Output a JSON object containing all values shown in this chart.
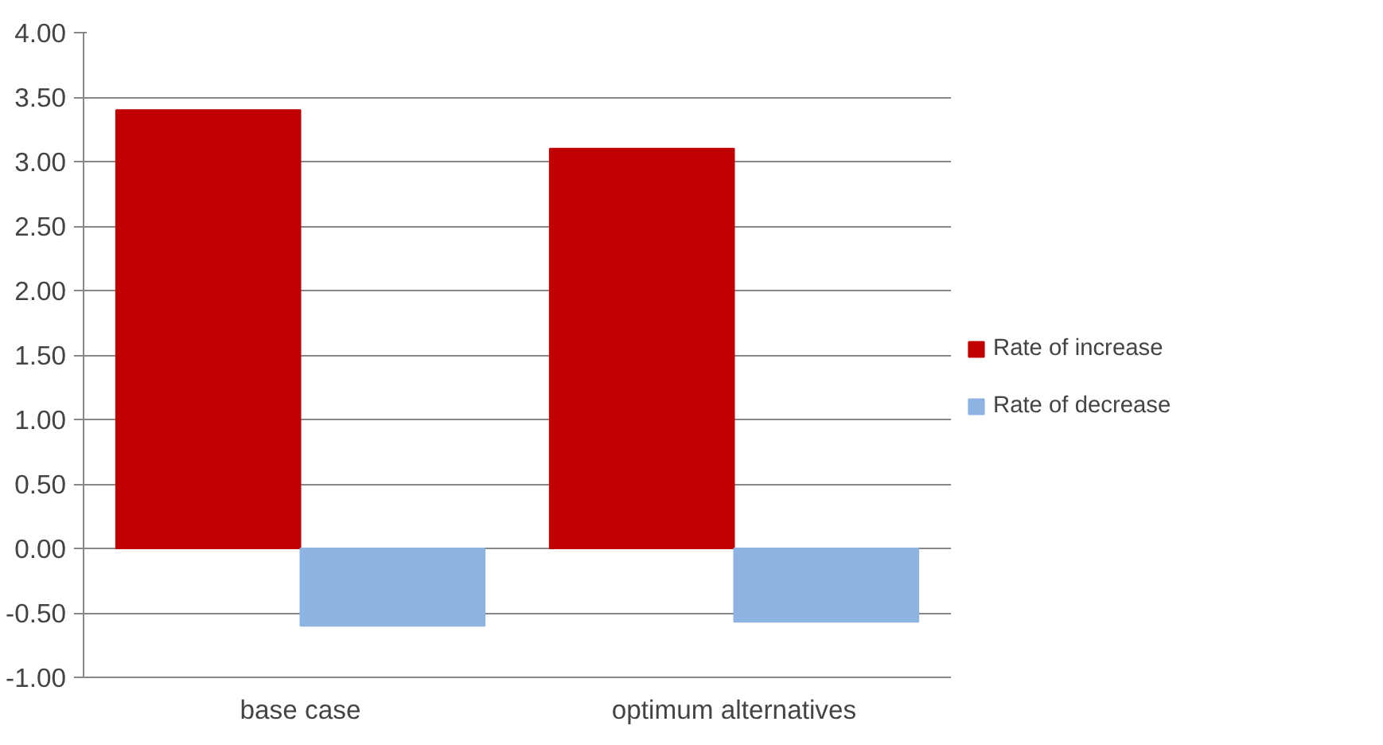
{
  "chart_data": {
    "type": "bar",
    "categories": [
      "base case",
      "optimum alternatives"
    ],
    "series": [
      {
        "name": "Rate of increase",
        "color": "#c00000",
        "values": [
          3.4,
          3.1
        ]
      },
      {
        "name": "Rate of decrease",
        "color": "#8db3e2",
        "values": [
          -0.6,
          -0.57
        ]
      }
    ],
    "ylim": [
      -1.0,
      4.0
    ],
    "yticks": [
      {
        "value": -1.0,
        "label": "-1.00"
      },
      {
        "value": -0.5,
        "label": "-0.50"
      },
      {
        "value": 0.0,
        "label": "0.00"
      },
      {
        "value": 0.5,
        "label": "0.50"
      },
      {
        "value": 1.0,
        "label": "1.00"
      },
      {
        "value": 1.5,
        "label": "1.50"
      },
      {
        "value": 2.0,
        "label": "2.00"
      },
      {
        "value": 2.5,
        "label": "2.50"
      },
      {
        "value": 3.0,
        "label": "3.00"
      },
      {
        "value": 3.5,
        "label": "3.50"
      },
      {
        "value": 4.0,
        "label": "4.00"
      }
    ],
    "grid": "y",
    "legend": "right"
  }
}
